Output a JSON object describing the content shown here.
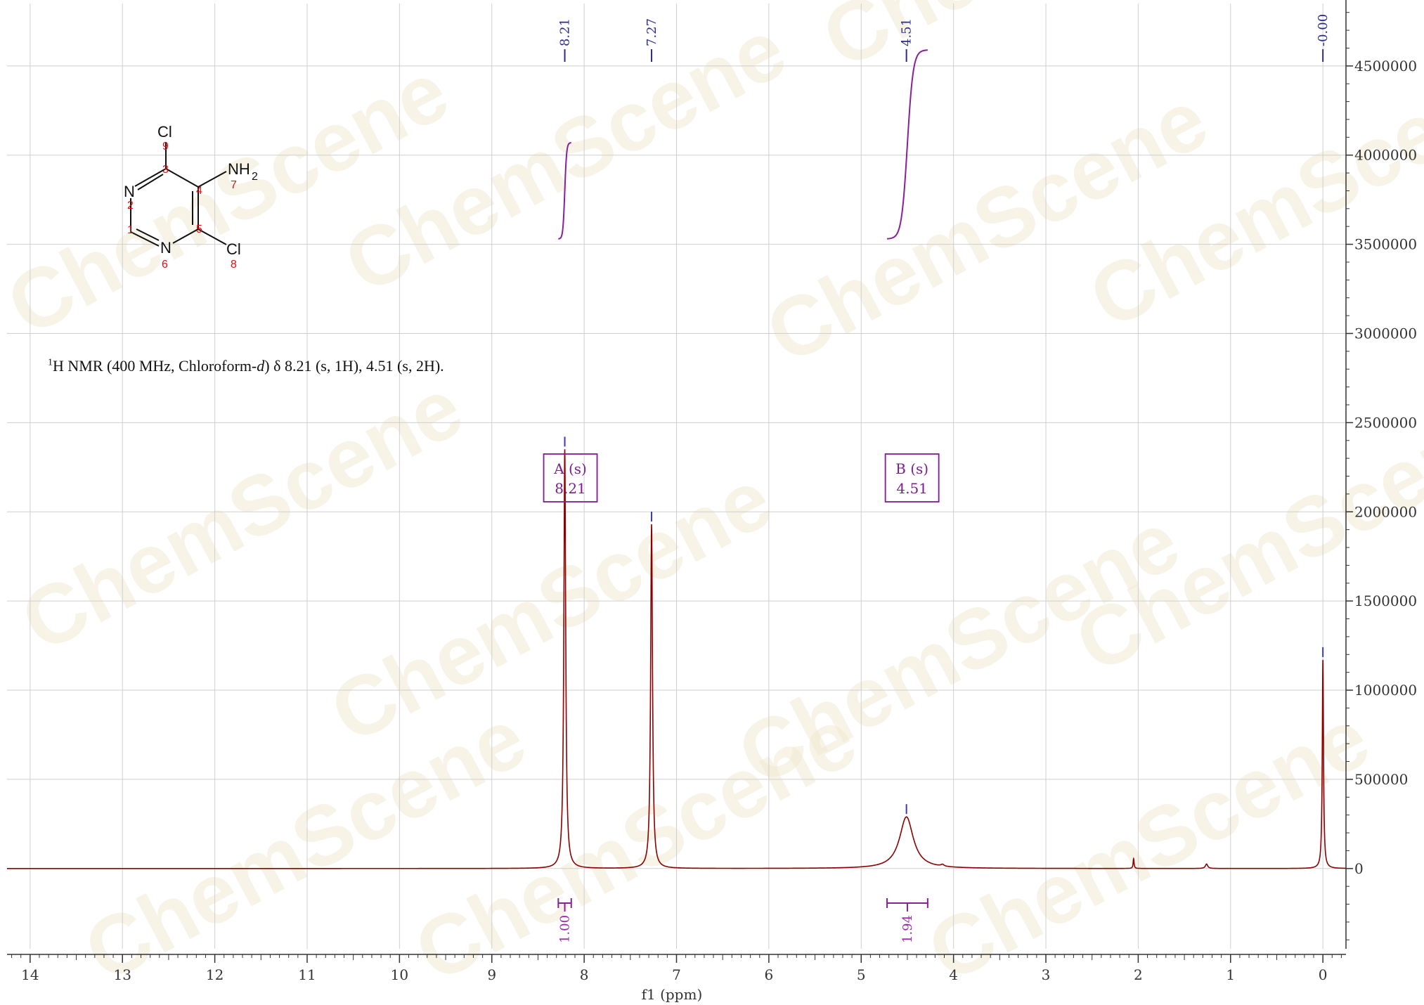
{
  "chart_data": {
    "type": "line",
    "xlabel": "f1 (ppm)",
    "xlim": [
      14.25,
      -0.25
    ],
    "ylim": [
      -450000,
      4850000
    ],
    "x_ticks": [
      14,
      13,
      12,
      11,
      10,
      9,
      8,
      7,
      6,
      5,
      4,
      3,
      2,
      1,
      0
    ],
    "y_ticks": [
      0,
      500000,
      1000000,
      1500000,
      2000000,
      2500000,
      3000000,
      3500000,
      4000000,
      4500000
    ],
    "y_tick_labels": [
      "0",
      "500000",
      "1000000",
      "1500000",
      "2000000",
      "2500000",
      "3000000",
      "3500000",
      "4000000",
      "4500000"
    ],
    "grid": true,
    "series_color": "#8b0000",
    "peaks": [
      {
        "x": 8.21,
        "height": 2350000,
        "width": 0.012
      },
      {
        "x": 7.27,
        "height": 1930000,
        "width": 0.012
      },
      {
        "x": 4.51,
        "height": 290000,
        "width": 0.09
      },
      {
        "x": 2.05,
        "height": 55000,
        "width": 0.006
      },
      {
        "x": 1.26,
        "height": 25000,
        "width": 0.015
      },
      {
        "x": 0.0,
        "height": 1170000,
        "width": 0.008
      },
      {
        "x": 4.12,
        "height": 10000,
        "width": 0.02
      }
    ],
    "peak_labels": [
      "8.21",
      "7.27",
      "4.51",
      "0.00"
    ],
    "peak_label_x": [
      8.21,
      7.27,
      4.51,
      0.0
    ],
    "integrals": [
      {
        "x_start": 8.28,
        "x_end": 8.14,
        "value": "1.00",
        "y_low": 3530000,
        "y_high": 4070000
      },
      {
        "x_start": 4.72,
        "x_end": 4.28,
        "value": "1.94",
        "y_low": 3530000,
        "y_high": 4590000
      }
    ],
    "multiplets": [
      {
        "label": "A (s)",
        "shift": "8.21",
        "x": 8.21
      },
      {
        "label": "B (s)",
        "shift": "4.51",
        "x": 4.51
      }
    ],
    "annotation": {
      "prefix": "1",
      "text_a": "H NMR (400 MHz, Chloroform-",
      "text_italic": "d",
      "text_b": ") δ 8.21 (s, 1H), 4.51 (s, 2H)."
    },
    "molecule": {
      "atoms": [
        "Cl",
        "N",
        "N",
        "NH",
        "2",
        "Cl"
      ],
      "numbers": [
        "9",
        "3",
        "2",
        "1",
        "4",
        "5",
        "6",
        "7",
        "8"
      ]
    },
    "watermark": "ChemScene"
  }
}
